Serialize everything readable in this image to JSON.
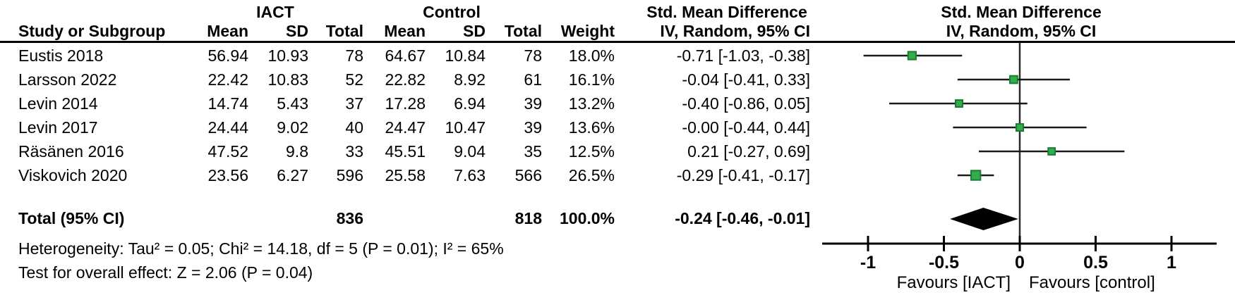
{
  "table": {
    "group1_header": "IACT",
    "group2_header": "Control",
    "smd_col_header_line1": "Std. Mean Difference",
    "smd_col_header_line2": "IV, Random, 95% CI",
    "plot_header_line1": "Std. Mean Difference",
    "plot_header_line2": "IV, Random, 95% CI",
    "column_headers": [
      "Study or Subgroup",
      "Mean",
      "SD",
      "Total",
      "Mean",
      "SD",
      "Total",
      "Weight",
      "IV, Random, 95% CI"
    ],
    "rows": [
      {
        "study": "Eustis 2018",
        "mean1": "56.94",
        "sd1": "10.93",
        "total1": "78",
        "mean2": "64.67",
        "sd2": "10.84",
        "total2": "78",
        "weight": "18.0%",
        "smd": "-0.71 [-1.03, -0.38]"
      },
      {
        "study": "Larsson 2022",
        "mean1": "22.42",
        "sd1": "10.83",
        "total1": "52",
        "mean2": "22.82",
        "sd2": "8.92",
        "total2": "61",
        "weight": "16.1%",
        "smd": "-0.04 [-0.41, 0.33]"
      },
      {
        "study": "Levin 2014",
        "mean1": "14.74",
        "sd1": "5.43",
        "total1": "37",
        "mean2": "17.28",
        "sd2": "6.94",
        "total2": "39",
        "weight": "13.2%",
        "smd": "-0.40 [-0.86, 0.05]"
      },
      {
        "study": "Levin 2017",
        "mean1": "24.44",
        "sd1": "9.02",
        "total1": "40",
        "mean2": "24.47",
        "sd2": "10.47",
        "total2": "39",
        "weight": "13.6%",
        "smd": "-0.00 [-0.44, 0.44]"
      },
      {
        "study": "Räsänen 2016",
        "mean1": "47.52",
        "sd1": "9.8",
        "total1": "33",
        "mean2": "45.51",
        "sd2": "9.04",
        "total2": "35",
        "weight": "12.5%",
        "smd": "0.21 [-0.27, 0.69]"
      },
      {
        "study": "Viskovich 2020",
        "mean1": "23.56",
        "sd1": "6.27",
        "total1": "596",
        "mean2": "25.58",
        "sd2": "7.63",
        "total2": "566",
        "weight": "26.5%",
        "smd": "-0.29 [-0.41, -0.17]"
      }
    ],
    "total_row": {
      "label": "Total (95% CI)",
      "total1": "836",
      "total2": "818",
      "weight": "100.0%",
      "smd": "-0.24 [-0.46, -0.01]"
    },
    "heterogeneity": "Heterogeneity: Tau² = 0.05; Chi² = 14.18, df = 5 (P = 0.01); I² = 65%",
    "overall_effect": "Test for overall effect: Z = 2.06 (P = 0.04)"
  },
  "chart_data": {
    "type": "forest",
    "title": "Std. Mean Difference, IV, Random, 95% CI",
    "x_axis": {
      "ticks": [
        -1,
        -0.5,
        0,
        0.5,
        1
      ],
      "tick_labels": [
        "-1",
        "-0.5",
        "0",
        "0.5",
        "1"
      ],
      "min": -1.3,
      "max": 1.3
    },
    "favours_left": "Favours [IACT]",
    "favours_right": "Favours [control]",
    "studies": [
      {
        "name": "Eustis 2018",
        "smd": -0.71,
        "ci_low": -1.03,
        "ci_high": -0.38,
        "weight": 18.0
      },
      {
        "name": "Larsson 2022",
        "smd": -0.04,
        "ci_low": -0.41,
        "ci_high": 0.33,
        "weight": 16.1
      },
      {
        "name": "Levin 2014",
        "smd": -0.4,
        "ci_low": -0.86,
        "ci_high": 0.05,
        "weight": 13.2
      },
      {
        "name": "Levin 2017",
        "smd": -0.0,
        "ci_low": -0.44,
        "ci_high": 0.44,
        "weight": 13.6
      },
      {
        "name": "Räsänen 2016",
        "smd": 0.21,
        "ci_low": -0.27,
        "ci_high": 0.69,
        "weight": 12.5
      },
      {
        "name": "Viskovich 2020",
        "smd": -0.29,
        "ci_low": -0.41,
        "ci_high": -0.17,
        "weight": 26.5
      }
    ],
    "total": {
      "smd": -0.24,
      "ci_low": -0.46,
      "ci_high": -0.01
    },
    "colors": {
      "marker_fill": "#2fae4a",
      "marker_border": "#1d7a34",
      "diamond": "#000000",
      "line": "#1a1a1a",
      "zero_line": "#2b2b2b"
    }
  }
}
